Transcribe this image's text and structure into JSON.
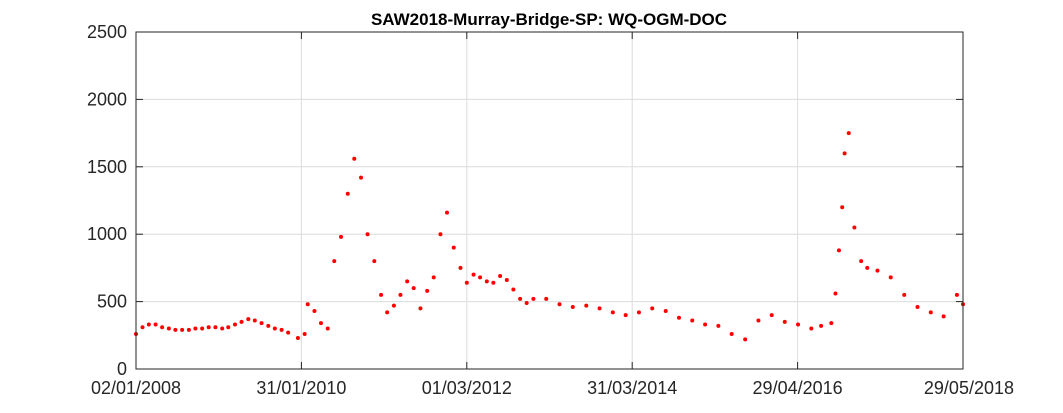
{
  "chart_data": {
    "type": "scatter",
    "title": "SAW2018-Murray-Bridge-SP: WQ-OGM-DOC",
    "xlabel": "",
    "ylabel": "",
    "x_ticks": [
      "02/01/2008",
      "31/01/2010",
      "01/03/2012",
      "31/03/2014",
      "29/04/2016",
      "29/05/2018"
    ],
    "ylim": [
      0,
      2500
    ],
    "y_ticks": [
      0,
      500,
      1000,
      1500,
      2000,
      2500
    ],
    "y_tick_labels": [
      "0",
      "500",
      "1000",
      "1500",
      "2000",
      "2500"
    ],
    "grid": true,
    "marker_color": "#ff0000",
    "series": [
      {
        "x": [
          "2008-01-02",
          "2008-02-01",
          "2008-03-01",
          "2008-04-01",
          "2008-05-01",
          "2008-06-01",
          "2008-07-01",
          "2008-08-01",
          "2008-09-01",
          "2008-10-01",
          "2008-11-01",
          "2008-12-01",
          "2009-01-01",
          "2009-02-01",
          "2009-03-01",
          "2009-04-01",
          "2009-05-01",
          "2009-06-01",
          "2009-07-01",
          "2009-08-01",
          "2009-09-01",
          "2009-10-01",
          "2009-11-01",
          "2009-12-01",
          "2010-01-15",
          "2010-02-15",
          "2010-03-01",
          "2010-04-01",
          "2010-05-01",
          "2010-06-01",
          "2010-07-01",
          "2010-08-01",
          "2010-09-01",
          "2010-10-01",
          "2010-11-01",
          "2010-12-01",
          "2011-01-01",
          "2011-02-01",
          "2011-03-01",
          "2011-04-01",
          "2011-05-01",
          "2011-06-01",
          "2011-07-01",
          "2011-08-01",
          "2011-09-01",
          "2011-10-01",
          "2011-11-01",
          "2011-12-01",
          "2012-01-01",
          "2012-02-01",
          "2012-03-01",
          "2012-04-01",
          "2012-05-01",
          "2012-06-01",
          "2012-07-01",
          "2012-08-01",
          "2012-09-01",
          "2012-10-01",
          "2012-11-01",
          "2012-12-01",
          "2013-01-01",
          "2013-03-01",
          "2013-05-01",
          "2013-07-01",
          "2013-09-01",
          "2013-11-01",
          "2014-01-01",
          "2014-03-01",
          "2014-05-01",
          "2014-07-01",
          "2014-09-01",
          "2014-11-01",
          "2015-01-01",
          "2015-03-01",
          "2015-05-01",
          "2015-07-01",
          "2015-09-01",
          "2015-11-01",
          "2016-01-01",
          "2016-03-01",
          "2016-05-01",
          "2016-07-01",
          "2016-08-15",
          "2016-10-01",
          "2016-10-20",
          "2016-11-05",
          "2016-11-20",
          "2016-12-01",
          "2016-12-20",
          "2017-01-15",
          "2017-02-15",
          "2017-03-15",
          "2017-05-01",
          "2017-07-01",
          "2017-09-01",
          "2017-11-01",
          "2018-01-01",
          "2018-03-01",
          "2018-05-01",
          "2018-05-29"
        ],
        "y": [
          260,
          310,
          330,
          330,
          310,
          300,
          290,
          290,
          290,
          300,
          300,
          310,
          310,
          300,
          310,
          330,
          350,
          370,
          360,
          340,
          320,
          300,
          290,
          270,
          230,
          260,
          480,
          430,
          340,
          300,
          800,
          980,
          1300,
          1560,
          1420,
          1000,
          800,
          550,
          420,
          470,
          550,
          650,
          600,
          450,
          580,
          680,
          1000,
          1160,
          900,
          750,
          640,
          700,
          680,
          650,
          640,
          690,
          660,
          590,
          520,
          490,
          520,
          520,
          480,
          460,
          470,
          450,
          420,
          400,
          420,
          450,
          430,
          380,
          360,
          330,
          320,
          260,
          220,
          360,
          400,
          350,
          330,
          300,
          320,
          340,
          560,
          880,
          1200,
          1600,
          1750,
          1050,
          800,
          750,
          730,
          680,
          550,
          460,
          420,
          390,
          550,
          480
        ]
      }
    ]
  }
}
